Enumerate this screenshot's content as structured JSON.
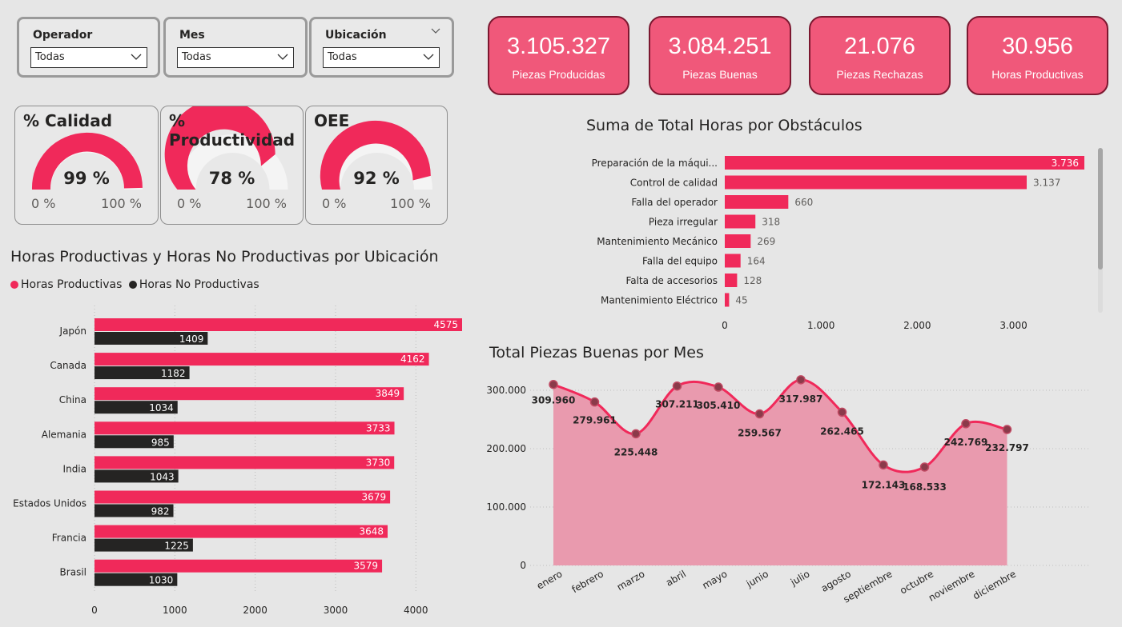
{
  "colors": {
    "accent": "#f0295a",
    "dark": "#252423",
    "kpi_bg": "#f0587a",
    "kpi_border": "#7b1830",
    "area_fill": "#e99aae",
    "point": "#8b3a4a"
  },
  "slicers": [
    {
      "label": "Operador",
      "value": "Todas"
    },
    {
      "label": "Mes",
      "value": "Todas"
    },
    {
      "label": "Ubicación",
      "value": "Todas"
    }
  ],
  "kpis": [
    {
      "value": "3.105.327",
      "caption": "Piezas Producidas"
    },
    {
      "value": "3.084.251",
      "caption": "Piezas Buenas"
    },
    {
      "value": "21.076",
      "caption": "Piezas Rechazas"
    },
    {
      "value": "30.956",
      "caption": "Horas Productivas"
    }
  ],
  "gauges": [
    {
      "title": "% Calidad",
      "value_label": "99 %",
      "value": 0.99,
      "min": "0 %",
      "max": "100 %"
    },
    {
      "title": "% Productividad",
      "value_label": "78 %",
      "value": 0.78,
      "min": "0 %",
      "max": "100 %"
    },
    {
      "title": "OEE",
      "value_label": "92 %",
      "value": 0.92,
      "min": "0 %",
      "max": "100 %"
    }
  ],
  "chart_data": [
    {
      "type": "bar",
      "orientation": "horizontal",
      "title": "Horas Productivas y Horas No Productivas por Ubicación",
      "categories": [
        "Japón",
        "Canada",
        "China",
        "Alemania",
        "India",
        "Estados Unidos",
        "Francia",
        "Brasil"
      ],
      "series": [
        {
          "name": "Horas Productivas",
          "values": [
            4575,
            4162,
            3849,
            3733,
            3730,
            3679,
            3648,
            3579
          ]
        },
        {
          "name": "Horas No Productivas",
          "values": [
            1409,
            1182,
            1034,
            985,
            1043,
            982,
            1225,
            1030
          ]
        }
      ],
      "xticks": [
        "0",
        "1000",
        "2000",
        "3000",
        "4000"
      ],
      "xlim": [
        0,
        4600
      ],
      "legend": "top-left"
    },
    {
      "type": "bar",
      "orientation": "horizontal",
      "title": "Suma de Total Horas por Obstáculos",
      "categories": [
        "Preparación de la máqui...",
        "Control de calidad",
        "Falla del operador",
        "Pieza irregular",
        "Mantenimiento Mecánico",
        "Falla del equipo",
        "Falta de accesorios",
        "Mantenimiento Eléctrico"
      ],
      "values": [
        3736,
        3137,
        660,
        318,
        269,
        164,
        128,
        45
      ],
      "value_labels": [
        "3.736",
        "3.137",
        "660",
        "318",
        "269",
        "164",
        "128",
        "45"
      ],
      "xticks": [
        "0",
        "1.000",
        "2.000",
        "3.000"
      ],
      "xlim": [
        0,
        3950
      ]
    },
    {
      "type": "area",
      "title": "Total Piezas Buenas por Mes",
      "categories": [
        "enero",
        "febrero",
        "marzo",
        "abril",
        "mayo",
        "junio",
        "julio",
        "agosto",
        "septiembre",
        "octubre",
        "noviembre",
        "diciembre"
      ],
      "values": [
        309960,
        279961,
        225448,
        307211,
        305410,
        259567,
        317987,
        262465,
        172143,
        168533,
        242769,
        232797
      ],
      "value_labels": [
        "309.960",
        "279.961",
        "225.448",
        "307.211",
        "305.410",
        "259.567",
        "317.987",
        "262.465",
        "172.143",
        "168.533",
        "242.769",
        "232.797"
      ],
      "yticks": [
        "0",
        "100.000",
        "200.000",
        "300.000"
      ],
      "ylim": [
        0,
        300000
      ]
    }
  ]
}
